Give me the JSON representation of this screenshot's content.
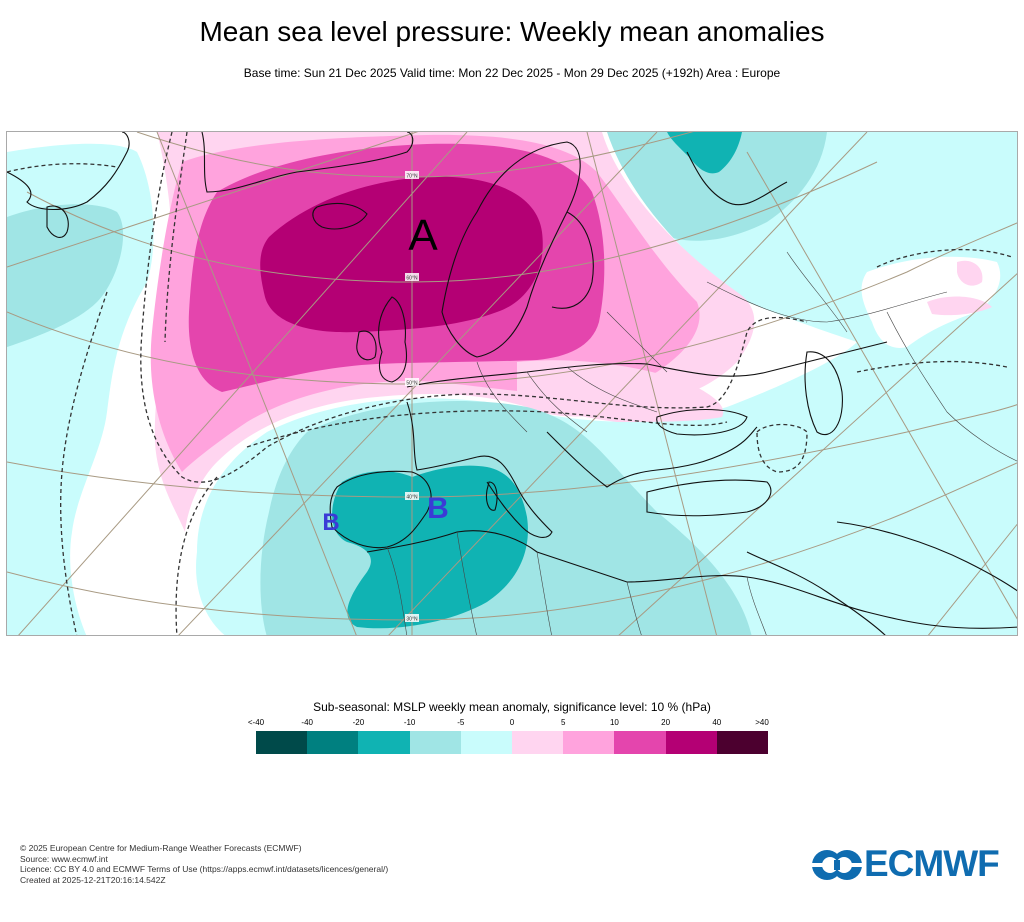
{
  "header": {
    "title": "Mean sea level pressure: Weekly mean anomalies",
    "subtitle": "Base time: Sun 21 Dec 2025 Valid time: Mon 22 Dec 2025 - Mon 29 Dec 2025 (+192h) Area : Europe"
  },
  "map": {
    "area": "Europe",
    "pressure_centers": [
      {
        "label": "A",
        "meaning": "high",
        "color": "#000000"
      },
      {
        "label": "B",
        "meaning": "low",
        "color": "#3b3bd6"
      },
      {
        "label": "B",
        "meaning": "low",
        "color": "#3b3bd6"
      }
    ],
    "latitude_labels": [
      "70°N",
      "60°N",
      "50°N",
      "40°N",
      "30°N"
    ],
    "colors": {
      "coast": "#111111",
      "border": "#333333",
      "graticule": "#a89a83",
      "significance_contour": "#333333"
    }
  },
  "legend": {
    "title": "Sub-seasonal: MSLP weekly mean anomaly, significance level: 10 % (hPa)",
    "ticks": [
      "<-40",
      "-40",
      "-20",
      "-10",
      "-5",
      "0",
      "5",
      "10",
      "20",
      "40",
      ">40"
    ],
    "colors": [
      "#004a4a",
      "#008080",
      "#10b3b3",
      "#a0e5e5",
      "#c9fcfc",
      "#ffd5f0",
      "#ffa3dd",
      "#e445ad",
      "#b40074",
      "#4c002f"
    ]
  },
  "footer": {
    "lines": [
      "© 2025 European Centre for Medium-Range Weather Forecasts (ECMWF)",
      "Source: www.ecmwf.int",
      "Licence: CC BY 4.0 and ECMWF Terms of Use (https://apps.ecmwf.int/datasets/licences/general/)",
      "Created at 2025-12-21T20:16:14.542Z"
    ],
    "logo_text": "ECMWF",
    "logo_color": "#0f6cb0"
  }
}
